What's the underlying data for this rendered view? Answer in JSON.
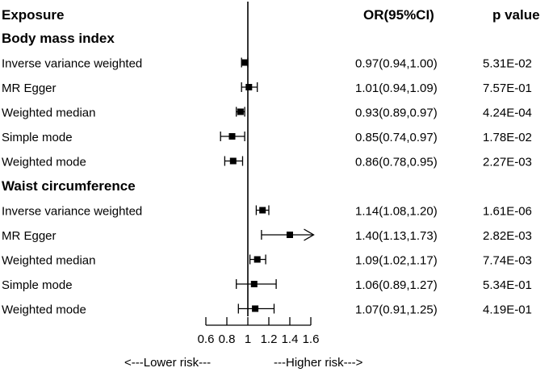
{
  "headers": {
    "exposure": "Exposure",
    "or": "OR(95%CI)",
    "pvalue": "p value"
  },
  "footer": {
    "lower": "<---Lower risk---",
    "higher": "---Higher risk--->"
  },
  "colors": {
    "ink": "#000000",
    "background": "#ffffff"
  },
  "chart_data": {
    "type": "forest",
    "reference_line": 1,
    "xlim": [
      0.6,
      1.6
    ],
    "xticks": [
      "0.6",
      "0.8",
      "1",
      "1.2",
      "1.4",
      "1.6"
    ],
    "groups": [
      {
        "name": "Body mass index",
        "rows": [
          {
            "method": "Inverse variance weighted",
            "or": 0.97,
            "lower": 0.94,
            "upper": 1.0,
            "or_text": "0.97(0.94,1.00)",
            "p_text": "5.31E-02"
          },
          {
            "method": "MR Egger",
            "or": 1.01,
            "lower": 0.94,
            "upper": 1.09,
            "or_text": "1.01(0.94,1.09)",
            "p_text": "7.57E-01"
          },
          {
            "method": "Weighted median",
            "or": 0.93,
            "lower": 0.89,
            "upper": 0.97,
            "or_text": "0.93(0.89,0.97)",
            "p_text": "4.24E-04"
          },
          {
            "method": "Simple mode",
            "or": 0.85,
            "lower": 0.74,
            "upper": 0.97,
            "or_text": "0.85(0.74,0.97)",
            "p_text": "1.78E-02"
          },
          {
            "method": "Weighted mode",
            "or": 0.86,
            "lower": 0.78,
            "upper": 0.95,
            "or_text": "0.86(0.78,0.95)",
            "p_text": "2.27E-03"
          }
        ]
      },
      {
        "name": "Waist circumference",
        "rows": [
          {
            "method": "Inverse variance weighted",
            "or": 1.14,
            "lower": 1.08,
            "upper": 1.2,
            "or_text": "1.14(1.08,1.20)",
            "p_text": "1.61E-06"
          },
          {
            "method": "MR Egger",
            "or": 1.4,
            "lower": 1.13,
            "upper": 1.73,
            "or_text": "1.40(1.13,1.73)",
            "p_text": "2.82E-03"
          },
          {
            "method": "Weighted median",
            "or": 1.09,
            "lower": 1.02,
            "upper": 1.17,
            "or_text": "1.09(1.02,1.17)",
            "p_text": "7.74E-03"
          },
          {
            "method": "Simple mode",
            "or": 1.06,
            "lower": 0.89,
            "upper": 1.27,
            "or_text": "1.06(0.89,1.27)",
            "p_text": "5.34E-01"
          },
          {
            "method": "Weighted mode",
            "or": 1.07,
            "lower": 0.91,
            "upper": 1.25,
            "or_text": "1.07(0.91,1.25)",
            "p_text": "4.19E-01"
          }
        ]
      }
    ]
  }
}
